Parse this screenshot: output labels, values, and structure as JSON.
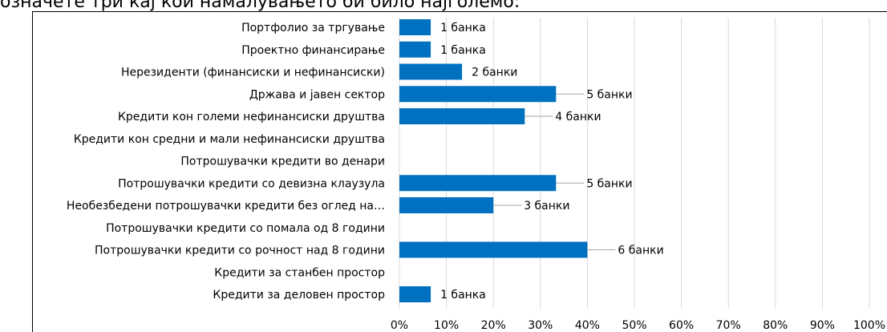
{
  "chart_data": {
    "type": "bar",
    "orientation": "horizontal",
    "title": "означете три кај кои намалувањето би било најголемо:",
    "categories": [
      "Портфолио за тргување",
      "Проектно финансирање",
      "Нерезиденти (финансиски и нефинансиски)",
      "Држава и јавен сектор",
      "Кредити кон големи нефинансиски друштва",
      "Кредити кон средни и мали нефинансиски друштва",
      "Потрошувачки кредити во денари",
      "Потрошувачки кредити со девизна клаузула",
      "Необезбедени потрошувачки кредити без оглед на…",
      "Потрошувачки кредити со помала од 8 години",
      "Потрошувачки кредити со рочност над 8 години",
      "Кредити за станбен простор",
      "Кредити за деловен простор"
    ],
    "values": [
      6.67,
      6.67,
      13.33,
      33.33,
      26.67,
      null,
      null,
      33.33,
      20,
      null,
      40,
      null,
      6.67
    ],
    "value_labels": [
      "1 банка",
      "1 банка",
      "2 банки",
      "5 банки",
      "4 банки",
      null,
      null,
      "5 банки",
      "3 банки",
      null,
      "6 банки",
      null,
      "1 банка"
    ],
    "color": "#0070c0",
    "xlim": [
      0,
      100
    ],
    "xticks": [
      {
        "value": 0,
        "label": "0%"
      },
      {
        "value": 10,
        "label": "10%"
      },
      {
        "value": 20,
        "label": "20%"
      },
      {
        "value": 30,
        "label": "30%"
      },
      {
        "value": 40,
        "label": "40%"
      },
      {
        "value": 50,
        "label": "50%"
      },
      {
        "value": 60,
        "label": "60%"
      },
      {
        "value": 70,
        "label": "70%"
      },
      {
        "value": 80,
        "label": "80%"
      },
      {
        "value": 90,
        "label": "90%"
      },
      {
        "value": 100,
        "label": "100%"
      }
    ],
    "grid": true
  }
}
